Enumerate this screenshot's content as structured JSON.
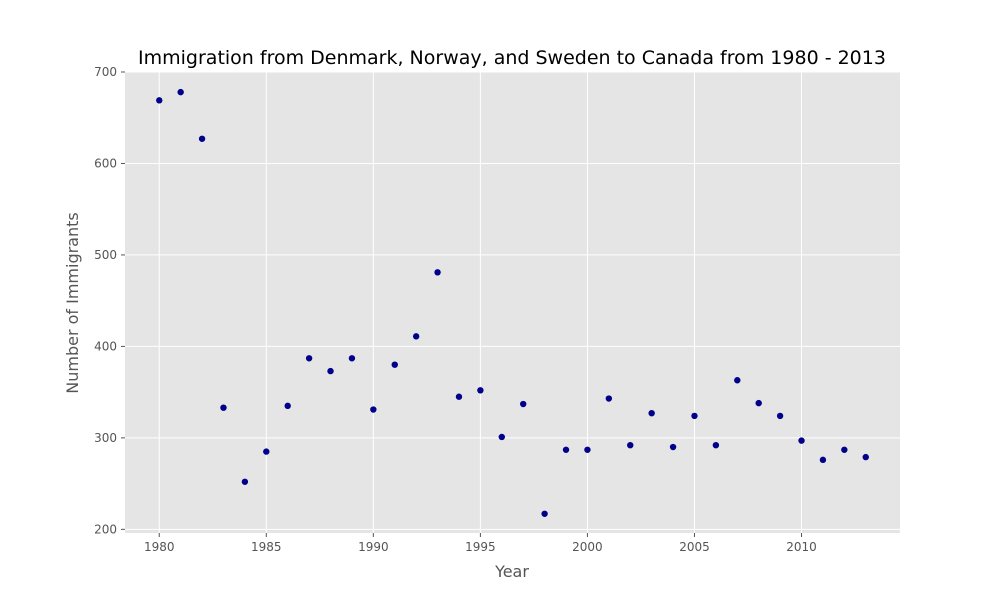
{
  "chart_data": {
    "type": "scatter",
    "title": "Immigration from Denmark, Norway, and Sweden to Canada from 1980 - 2013",
    "xlabel": "Year",
    "ylabel": "Number of Immigrants",
    "xlim": [
      1978.4,
      2014.6
    ],
    "ylim": [
      196,
      700
    ],
    "xticks": [
      1980,
      1985,
      1990,
      1995,
      2000,
      2005,
      2010
    ],
    "yticks": [
      200,
      300,
      400,
      500,
      600,
      700
    ],
    "grid": true,
    "legend": "none",
    "series": [
      {
        "x": [
          1980,
          1981,
          1982,
          1983,
          1984,
          1985,
          1986,
          1987,
          1988,
          1989,
          1990,
          1991,
          1992,
          1993,
          1994,
          1995,
          1996,
          1997,
          1998,
          1999,
          2000,
          2001,
          2002,
          2003,
          2004,
          2005,
          2006,
          2007,
          2008,
          2009,
          2010,
          2011,
          2012,
          2013
        ],
        "values": [
          669,
          678,
          627,
          333,
          252,
          285,
          335,
          387,
          373,
          387,
          331,
          380,
          411,
          481,
          345,
          352,
          301,
          337,
          217,
          287,
          287,
          343,
          292,
          327,
          290,
          324,
          292,
          363,
          338,
          324,
          297,
          276,
          287,
          279
        ]
      }
    ]
  },
  "colors": {
    "plot_background": "#e5e5e5",
    "grid": "#ffffff",
    "marker": "#00008b",
    "tick_label": "#555555",
    "axis_label": "#555555",
    "title": "#000000"
  }
}
